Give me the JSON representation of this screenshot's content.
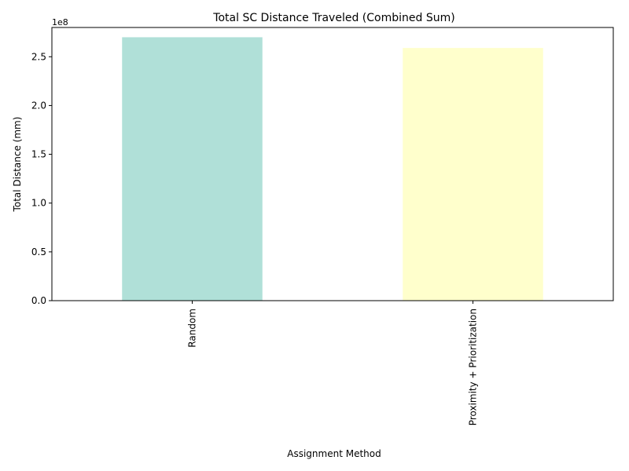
{
  "chart_data": {
    "type": "bar",
    "title": "Total SC Distance Traveled (Combined Sum)",
    "xlabel": "Assignment Method",
    "ylabel": "Total Distance (mm)",
    "offset_label": "1e8",
    "categories": [
      "Random",
      "Proximity + Prioritization"
    ],
    "values": [
      270000000,
      259000000
    ],
    "colors": [
      "#b0e0d8",
      "#ffffcc"
    ],
    "ylim": [
      0,
      280000000
    ],
    "y_ticks": [
      0,
      50000000,
      100000000,
      150000000,
      200000000,
      250000000
    ],
    "y_tick_labels": [
      "0.0",
      "0.5",
      "1.0",
      "1.5",
      "2.0",
      "2.5"
    ],
    "grid": false,
    "legend": "none"
  }
}
